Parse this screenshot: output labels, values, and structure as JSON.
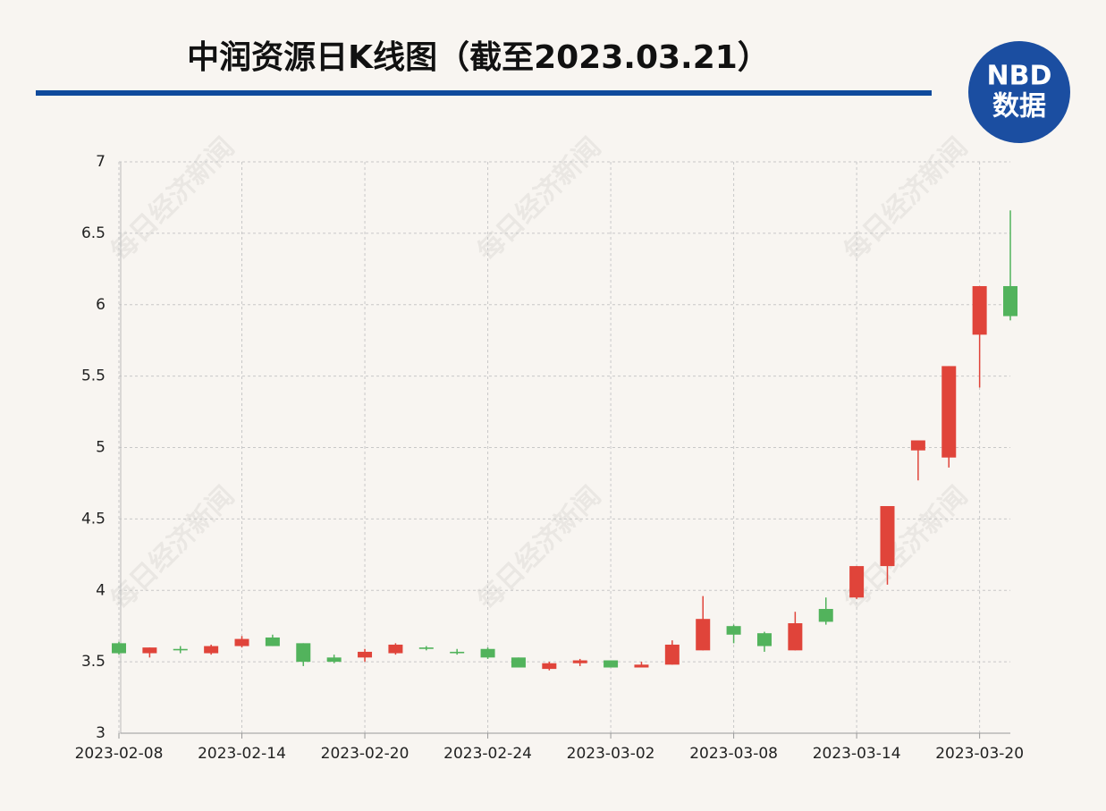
{
  "chart_data": {
    "type": "candlestick",
    "title": "中润资源日K线图（截至2023.03.21）",
    "logo_top": "NBD",
    "logo_bottom": "数据",
    "watermark": "每日经济新闻",
    "categories": [
      "2023-02-08",
      null,
      null,
      null,
      "2023-02-14",
      null,
      null,
      null,
      "2023-02-20",
      null,
      null,
      null,
      "2023-02-24",
      null,
      null,
      null,
      "2023-03-02",
      null,
      null,
      null,
      "2023-03-08",
      null,
      null,
      null,
      "2023-03-14",
      null,
      null,
      null,
      "2023-03-20",
      null
    ],
    "open": [
      3.63,
      3.56,
      3.59,
      3.56,
      3.61,
      3.67,
      3.63,
      3.53,
      3.53,
      3.56,
      3.6,
      3.57,
      3.59,
      3.53,
      3.45,
      3.49,
      3.51,
      3.46,
      3.48,
      3.58,
      3.75,
      3.7,
      3.58,
      3.87,
      3.95,
      4.17,
      4.98,
      4.93,
      5.79,
      6.13
    ],
    "close": [
      3.56,
      3.6,
      3.58,
      3.61,
      3.66,
      3.61,
      3.5,
      3.5,
      3.57,
      3.62,
      3.59,
      3.56,
      3.53,
      3.46,
      3.49,
      3.51,
      3.46,
      3.48,
      3.62,
      3.8,
      3.69,
      3.61,
      3.77,
      3.78,
      4.17,
      4.59,
      5.05,
      5.57,
      6.13,
      5.92
    ],
    "high": [
      3.64,
      3.6,
      3.61,
      3.62,
      3.68,
      3.69,
      3.63,
      3.55,
      3.59,
      3.63,
      3.61,
      3.59,
      3.6,
      3.53,
      3.5,
      3.52,
      3.51,
      3.5,
      3.65,
      3.96,
      3.76,
      3.71,
      3.85,
      3.95,
      4.17,
      4.59,
      5.05,
      5.57,
      6.13,
      6.66
    ],
    "low": [
      3.55,
      3.53,
      3.56,
      3.55,
      3.6,
      3.61,
      3.47,
      3.49,
      3.5,
      3.55,
      3.58,
      3.55,
      3.52,
      3.46,
      3.44,
      3.47,
      3.46,
      3.46,
      3.48,
      3.58,
      3.63,
      3.57,
      3.58,
      3.76,
      3.94,
      4.04,
      4.77,
      4.86,
      5.42,
      5.89
    ],
    "up_color": "#e0443a",
    "down_color": "#52b35c",
    "ylim": [
      3,
      7
    ],
    "yticks": [
      3,
      3.5,
      4,
      4.5,
      5,
      5.5,
      6,
      6.5,
      7
    ],
    "grid": true
  }
}
